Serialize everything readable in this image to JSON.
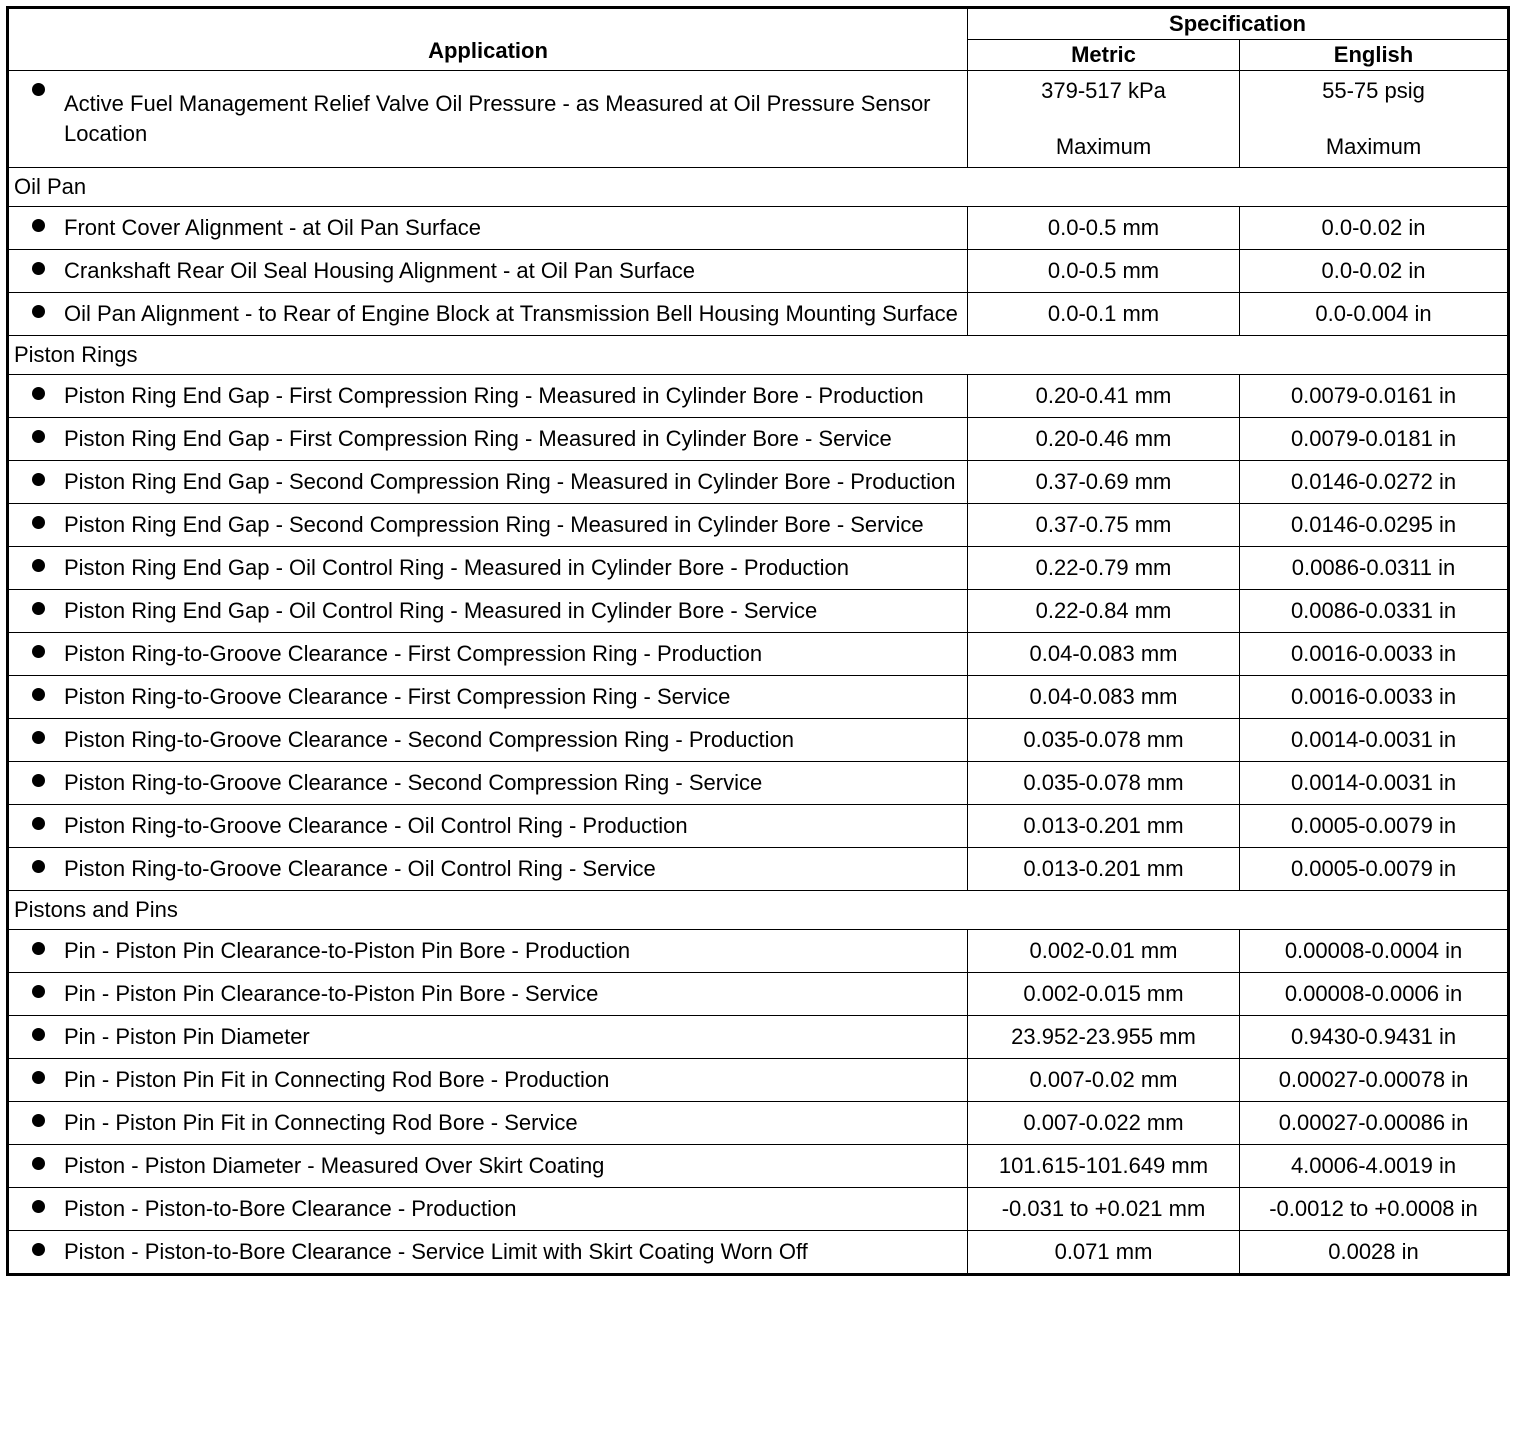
{
  "header": {
    "application": "Application",
    "specification": "Specification",
    "metric": "Metric",
    "english": "English"
  },
  "rows": [
    {
      "type": "item",
      "app": "Active Fuel Management Relief Valve Oil Pressure - as Measured at Oil Pressure Sensor Location",
      "metric": "379-517 kPa",
      "metric_note": "Maximum",
      "english": "55-75 psig",
      "english_note": "Maximum"
    },
    {
      "type": "section",
      "label": "Oil Pan"
    },
    {
      "type": "item",
      "app": "Front Cover Alignment - at Oil Pan Surface",
      "metric": "0.0-0.5 mm",
      "english": "0.0-0.02 in"
    },
    {
      "type": "item",
      "app": "Crankshaft Rear Oil Seal Housing Alignment - at Oil Pan Surface",
      "metric": "0.0-0.5 mm",
      "english": "0.0-0.02 in"
    },
    {
      "type": "item",
      "app": "Oil Pan Alignment - to Rear of Engine Block at Transmission Bell Housing Mounting Surface",
      "metric": "0.0-0.1 mm",
      "english": "0.0-0.004 in"
    },
    {
      "type": "section",
      "label": "Piston Rings"
    },
    {
      "type": "item",
      "app": "Piston Ring End Gap - First Compression Ring - Measured in Cylinder Bore - Production",
      "metric": "0.20-0.41 mm",
      "english": "0.0079-0.0161 in"
    },
    {
      "type": "item",
      "app": "Piston Ring End Gap - First Compression Ring - Measured in Cylinder Bore - Service",
      "metric": "0.20-0.46 mm",
      "english": "0.0079-0.0181 in"
    },
    {
      "type": "item",
      "app": "Piston Ring End Gap - Second Compression Ring - Measured in Cylinder Bore - Production",
      "metric": "0.37-0.69 mm",
      "english": "0.0146-0.0272 in"
    },
    {
      "type": "item",
      "app": "Piston Ring End Gap - Second Compression Ring - Measured in Cylinder Bore - Service",
      "metric": "0.37-0.75 mm",
      "english": "0.0146-0.0295 in"
    },
    {
      "type": "item",
      "app": "Piston Ring End Gap - Oil Control Ring - Measured in Cylinder Bore - Production",
      "metric": "0.22-0.79 mm",
      "english": "0.0086-0.0311 in"
    },
    {
      "type": "item",
      "app": "Piston Ring End Gap - Oil Control Ring - Measured in Cylinder Bore - Service",
      "metric": "0.22-0.84 mm",
      "english": "0.0086-0.0331 in"
    },
    {
      "type": "item",
      "app": "Piston Ring-to-Groove Clearance - First Compression Ring - Production",
      "metric": "0.04-0.083 mm",
      "english": "0.0016-0.0033 in"
    },
    {
      "type": "item",
      "app": "Piston Ring-to-Groove Clearance - First Compression Ring - Service",
      "metric": "0.04-0.083 mm",
      "english": "0.0016-0.0033 in"
    },
    {
      "type": "item",
      "app": "Piston Ring-to-Groove Clearance - Second Compression Ring - Production",
      "metric": "0.035-0.078 mm",
      "english": "0.0014-0.0031 in"
    },
    {
      "type": "item",
      "app": "Piston Ring-to-Groove Clearance - Second Compression Ring - Service",
      "metric": "0.035-0.078 mm",
      "english": "0.0014-0.0031 in"
    },
    {
      "type": "item",
      "app": "Piston Ring-to-Groove Clearance - Oil Control Ring - Production",
      "metric": "0.013-0.201 mm",
      "english": "0.0005-0.0079 in"
    },
    {
      "type": "item",
      "app": "Piston Ring-to-Groove Clearance - Oil Control Ring - Service",
      "metric": "0.013-0.201 mm",
      "english": "0.0005-0.0079 in"
    },
    {
      "type": "section",
      "label": "Pistons and Pins"
    },
    {
      "type": "item",
      "app": "Pin - Piston Pin Clearance-to-Piston Pin Bore - Production",
      "metric": "0.002-0.01 mm",
      "english": "0.00008-0.0004 in"
    },
    {
      "type": "item",
      "app": "Pin - Piston Pin Clearance-to-Piston Pin Bore - Service",
      "metric": "0.002-0.015 mm",
      "english": "0.00008-0.0006 in"
    },
    {
      "type": "item",
      "app": "Pin - Piston Pin Diameter",
      "metric": "23.952-23.955 mm",
      "english": "0.9430-0.9431 in"
    },
    {
      "type": "item",
      "app": "Pin - Piston Pin Fit in Connecting Rod Bore - Production",
      "metric": "0.007-0.02 mm",
      "english": "0.00027-0.00078 in"
    },
    {
      "type": "item",
      "app": "Pin - Piston Pin Fit in Connecting Rod Bore - Service",
      "metric": "0.007-0.022 mm",
      "english": "0.00027-0.00086 in"
    },
    {
      "type": "item",
      "app": "Piston - Piston Diameter - Measured Over Skirt Coating",
      "metric": "101.615-101.649 mm",
      "english": "4.0006-4.0019 in"
    },
    {
      "type": "item",
      "app": "Piston - Piston-to-Bore Clearance - Production",
      "metric": "-0.031 to +0.021 mm",
      "english": "-0.0012 to +0.0008 in"
    },
    {
      "type": "item",
      "app": "Piston - Piston-to-Bore Clearance - Service Limit with Skirt Coating Worn Off",
      "metric": "0.071 mm",
      "english": "0.0028 in"
    }
  ]
}
